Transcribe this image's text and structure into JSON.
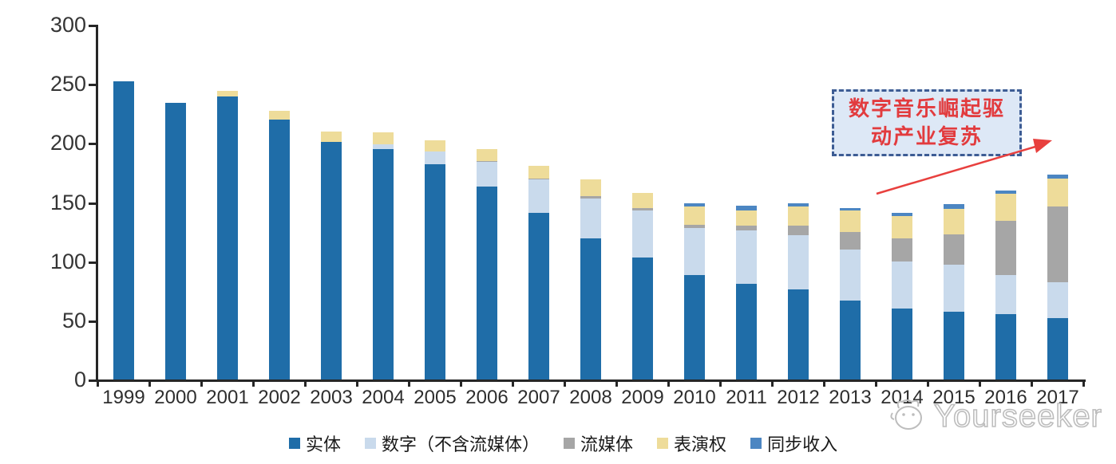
{
  "chart_data": {
    "type": "bar",
    "stacked": true,
    "title": "",
    "xlabel": "",
    "ylabel": "",
    "categories": [
      "1999",
      "2000",
      "2001",
      "2002",
      "2003",
      "2004",
      "2005",
      "2006",
      "2007",
      "2008",
      "2009",
      "2010",
      "2011",
      "2012",
      "2013",
      "2014",
      "2015",
      "2016",
      "2017"
    ],
    "series": [
      {
        "name": "实体",
        "color": "#1F6DA8",
        "values": [
          252,
          234,
          239,
          220,
          201,
          195,
          182,
          163,
          141,
          119,
          103,
          88,
          81,
          76,
          67,
          60,
          57,
          55,
          52
        ]
      },
      {
        "name": "数字（不含流媒体）",
        "color": "#C9DAEC",
        "values": [
          0,
          0,
          0,
          0,
          0,
          4,
          11,
          21,
          28,
          34,
          40,
          40,
          45,
          46,
          43,
          40,
          40,
          33,
          30
        ]
      },
      {
        "name": "流媒体",
        "color": "#A6A6A6",
        "values": [
          0,
          0,
          0,
          0,
          0,
          0,
          0,
          1,
          1,
          2,
          2,
          3,
          4,
          8,
          15,
          19,
          26,
          46,
          64
        ]
      },
      {
        "name": "表演权",
        "color": "#EEDC9A",
        "values": [
          0,
          0,
          5,
          7,
          9,
          10,
          9,
          10,
          11,
          14,
          13,
          15,
          13,
          16,
          18,
          19,
          21,
          23,
          24
        ]
      },
      {
        "name": "同步收入",
        "color": "#4C86C2",
        "values": [
          0,
          0,
          0,
          0,
          0,
          0,
          0,
          0,
          0,
          0,
          0,
          3,
          4,
          3,
          2,
          3,
          4,
          3,
          3
        ]
      }
    ],
    "ylim": [
      0,
      300
    ],
    "yticks": [
      0,
      50,
      100,
      150,
      200,
      250,
      300
    ],
    "grid": false,
    "legend_position": "bottom"
  },
  "annotation": {
    "line1": "数字音乐崛起驱",
    "line2": "动产业复苏",
    "box_fill": "#DDE8F6",
    "border_color": "#3D5C94",
    "text_color": "#E23B3E",
    "arrow_color": "#E8403E"
  },
  "watermark": {
    "text": "Yourseeker",
    "color": "#BDBDBD"
  }
}
